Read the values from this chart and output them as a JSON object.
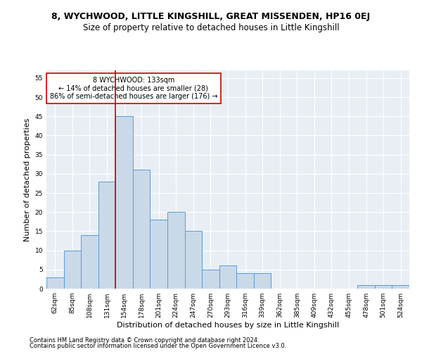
{
  "title": "8, WYCHWOOD, LITTLE KINGSHILL, GREAT MISSENDEN, HP16 0EJ",
  "subtitle": "Size of property relative to detached houses in Little Kingshill",
  "xlabel": "Distribution of detached houses by size in Little Kingshill",
  "ylabel": "Number of detached properties",
  "footer1": "Contains HM Land Registry data © Crown copyright and database right 2024.",
  "footer2": "Contains public sector information licensed under the Open Government Licence v3.0.",
  "categories": [
    "62sqm",
    "85sqm",
    "108sqm",
    "131sqm",
    "154sqm",
    "178sqm",
    "201sqm",
    "224sqm",
    "247sqm",
    "270sqm",
    "293sqm",
    "316sqm",
    "339sqm",
    "362sqm",
    "385sqm",
    "409sqm",
    "432sqm",
    "455sqm",
    "478sqm",
    "501sqm",
    "524sqm"
  ],
  "values": [
    3,
    10,
    14,
    28,
    45,
    31,
    18,
    20,
    15,
    5,
    6,
    4,
    4,
    0,
    0,
    0,
    0,
    0,
    1,
    1,
    1
  ],
  "bar_color": "#c9d9e8",
  "bar_edge_color": "#5b9bd5",
  "vline_x": 3.5,
  "vline_color": "#cc0000",
  "annotation_text": "8 WYCHWOOD: 133sqm\n← 14% of detached houses are smaller (28)\n86% of semi-detached houses are larger (176) →",
  "annotation_box_color": "white",
  "annotation_box_edge": "#cc0000",
  "ylim": [
    0,
    57
  ],
  "yticks": [
    0,
    5,
    10,
    15,
    20,
    25,
    30,
    35,
    40,
    45,
    50,
    55
  ],
  "bg_color": "#e8eef4",
  "fig_bg": "#ffffff",
  "grid_color": "#ffffff",
  "title_fontsize": 9,
  "subtitle_fontsize": 8.5,
  "tick_fontsize": 6.5,
  "ylabel_fontsize": 8,
  "xlabel_fontsize": 8,
  "footer_fontsize": 6,
  "annotation_fontsize": 7
}
